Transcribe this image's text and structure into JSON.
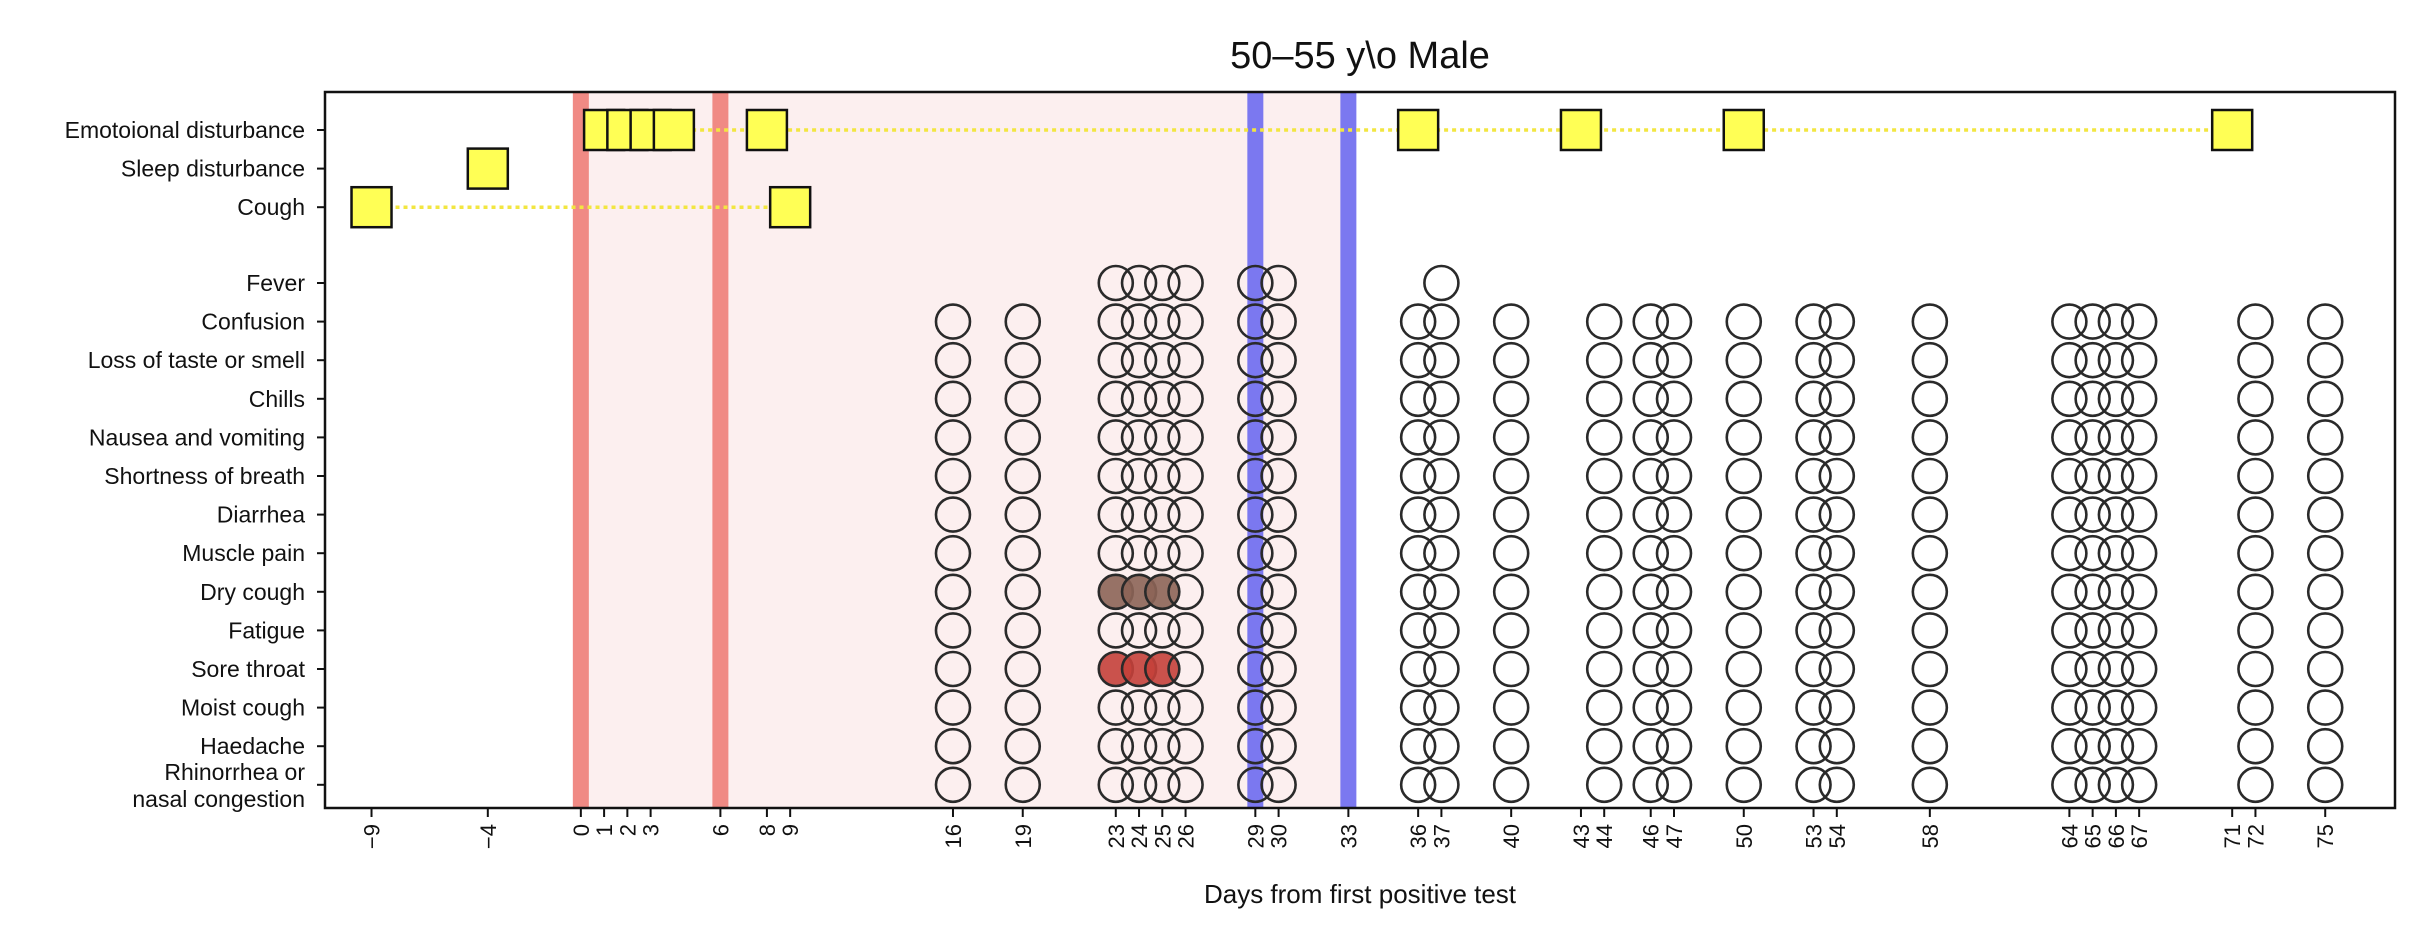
{
  "chart_data": {
    "type": "scatter",
    "title": "50–55 y\\o Male",
    "xlabel": "Days from first positive test",
    "ylabel": "",
    "xlim": [
      -11,
      78
    ],
    "grid": false,
    "legend": "none",
    "x_ticks": [
      -9,
      -4,
      0,
      1,
      2,
      3,
      6,
      8,
      9,
      16,
      19,
      23,
      24,
      25,
      26,
      29,
      30,
      33,
      36,
      37,
      40,
      43,
      44,
      46,
      47,
      50,
      53,
      54,
      58,
      64,
      65,
      66,
      67,
      71,
      72,
      75
    ],
    "x_tick_labels": [
      "−9",
      "−4",
      "0",
      "1",
      "2",
      "3",
      "6",
      "8",
      "9",
      "16",
      "19",
      "23",
      "24",
      "25",
      "26",
      "29",
      "30",
      "33",
      "36",
      "37",
      "40",
      "43",
      "44",
      "46",
      "47",
      "50",
      "53",
      "54",
      "58",
      "64",
      "65",
      "66",
      "67",
      "71",
      "72",
      "75"
    ],
    "categories_top": [
      "Emotoional disturbance",
      "Sleep disturbance",
      "Cough"
    ],
    "categories_bottom": [
      "Fever",
      "Confusion",
      "Loss of taste or smell",
      "Chills",
      "Nausea and vomiting",
      "Shortness of breath",
      "Diarrhea",
      "Muscle pain",
      "Dry cough",
      "Fatigue",
      "Sore throat",
      "Moist cough",
      "Haedache",
      "Rhinorrhea or|nasal congestion"
    ],
    "positive_tests": [
      0,
      6
    ],
    "negative_tests": [
      29,
      33
    ],
    "infection_shading": [
      0,
      33
    ],
    "colors": {
      "positive_test": "#f08a84",
      "negative_test": "#7b78f0",
      "infection_shade": "#fcefef",
      "square_fill": "#ffff55",
      "square_line": "#f2e640",
      "circle_stroke": "#2a2a2a",
      "dry_cough_fill": "#8c6456",
      "sore_throat_fill": "#c4403a"
    },
    "squares": [
      {
        "symptom": "Emotoional disturbance",
        "x": [
          1,
          2,
          3,
          4,
          8,
          36,
          43,
          50,
          71
        ],
        "line_to": 71
      },
      {
        "symptom": "Sleep disturbance",
        "x": [
          -4
        ],
        "line_to": null
      },
      {
        "symptom": "Cough",
        "x": [
          -9,
          9
        ],
        "line_to": 9
      }
    ],
    "survey_days": [
      16,
      19,
      23,
      24,
      25,
      26,
      29,
      30,
      36,
      37,
      40,
      44,
      46,
      47,
      50,
      53,
      54,
      58,
      64,
      65,
      66,
      67,
      72,
      75
    ],
    "fever_survey_days": [
      23,
      24,
      25,
      26,
      29,
      30,
      37
    ],
    "filled_circles": [
      {
        "symptom": "Dry cough",
        "x": [
          23,
          24,
          25
        ],
        "severity": "mild"
      },
      {
        "symptom": "Sore throat",
        "x": [
          23,
          24,
          25
        ],
        "severity": "moderate"
      }
    ]
  }
}
